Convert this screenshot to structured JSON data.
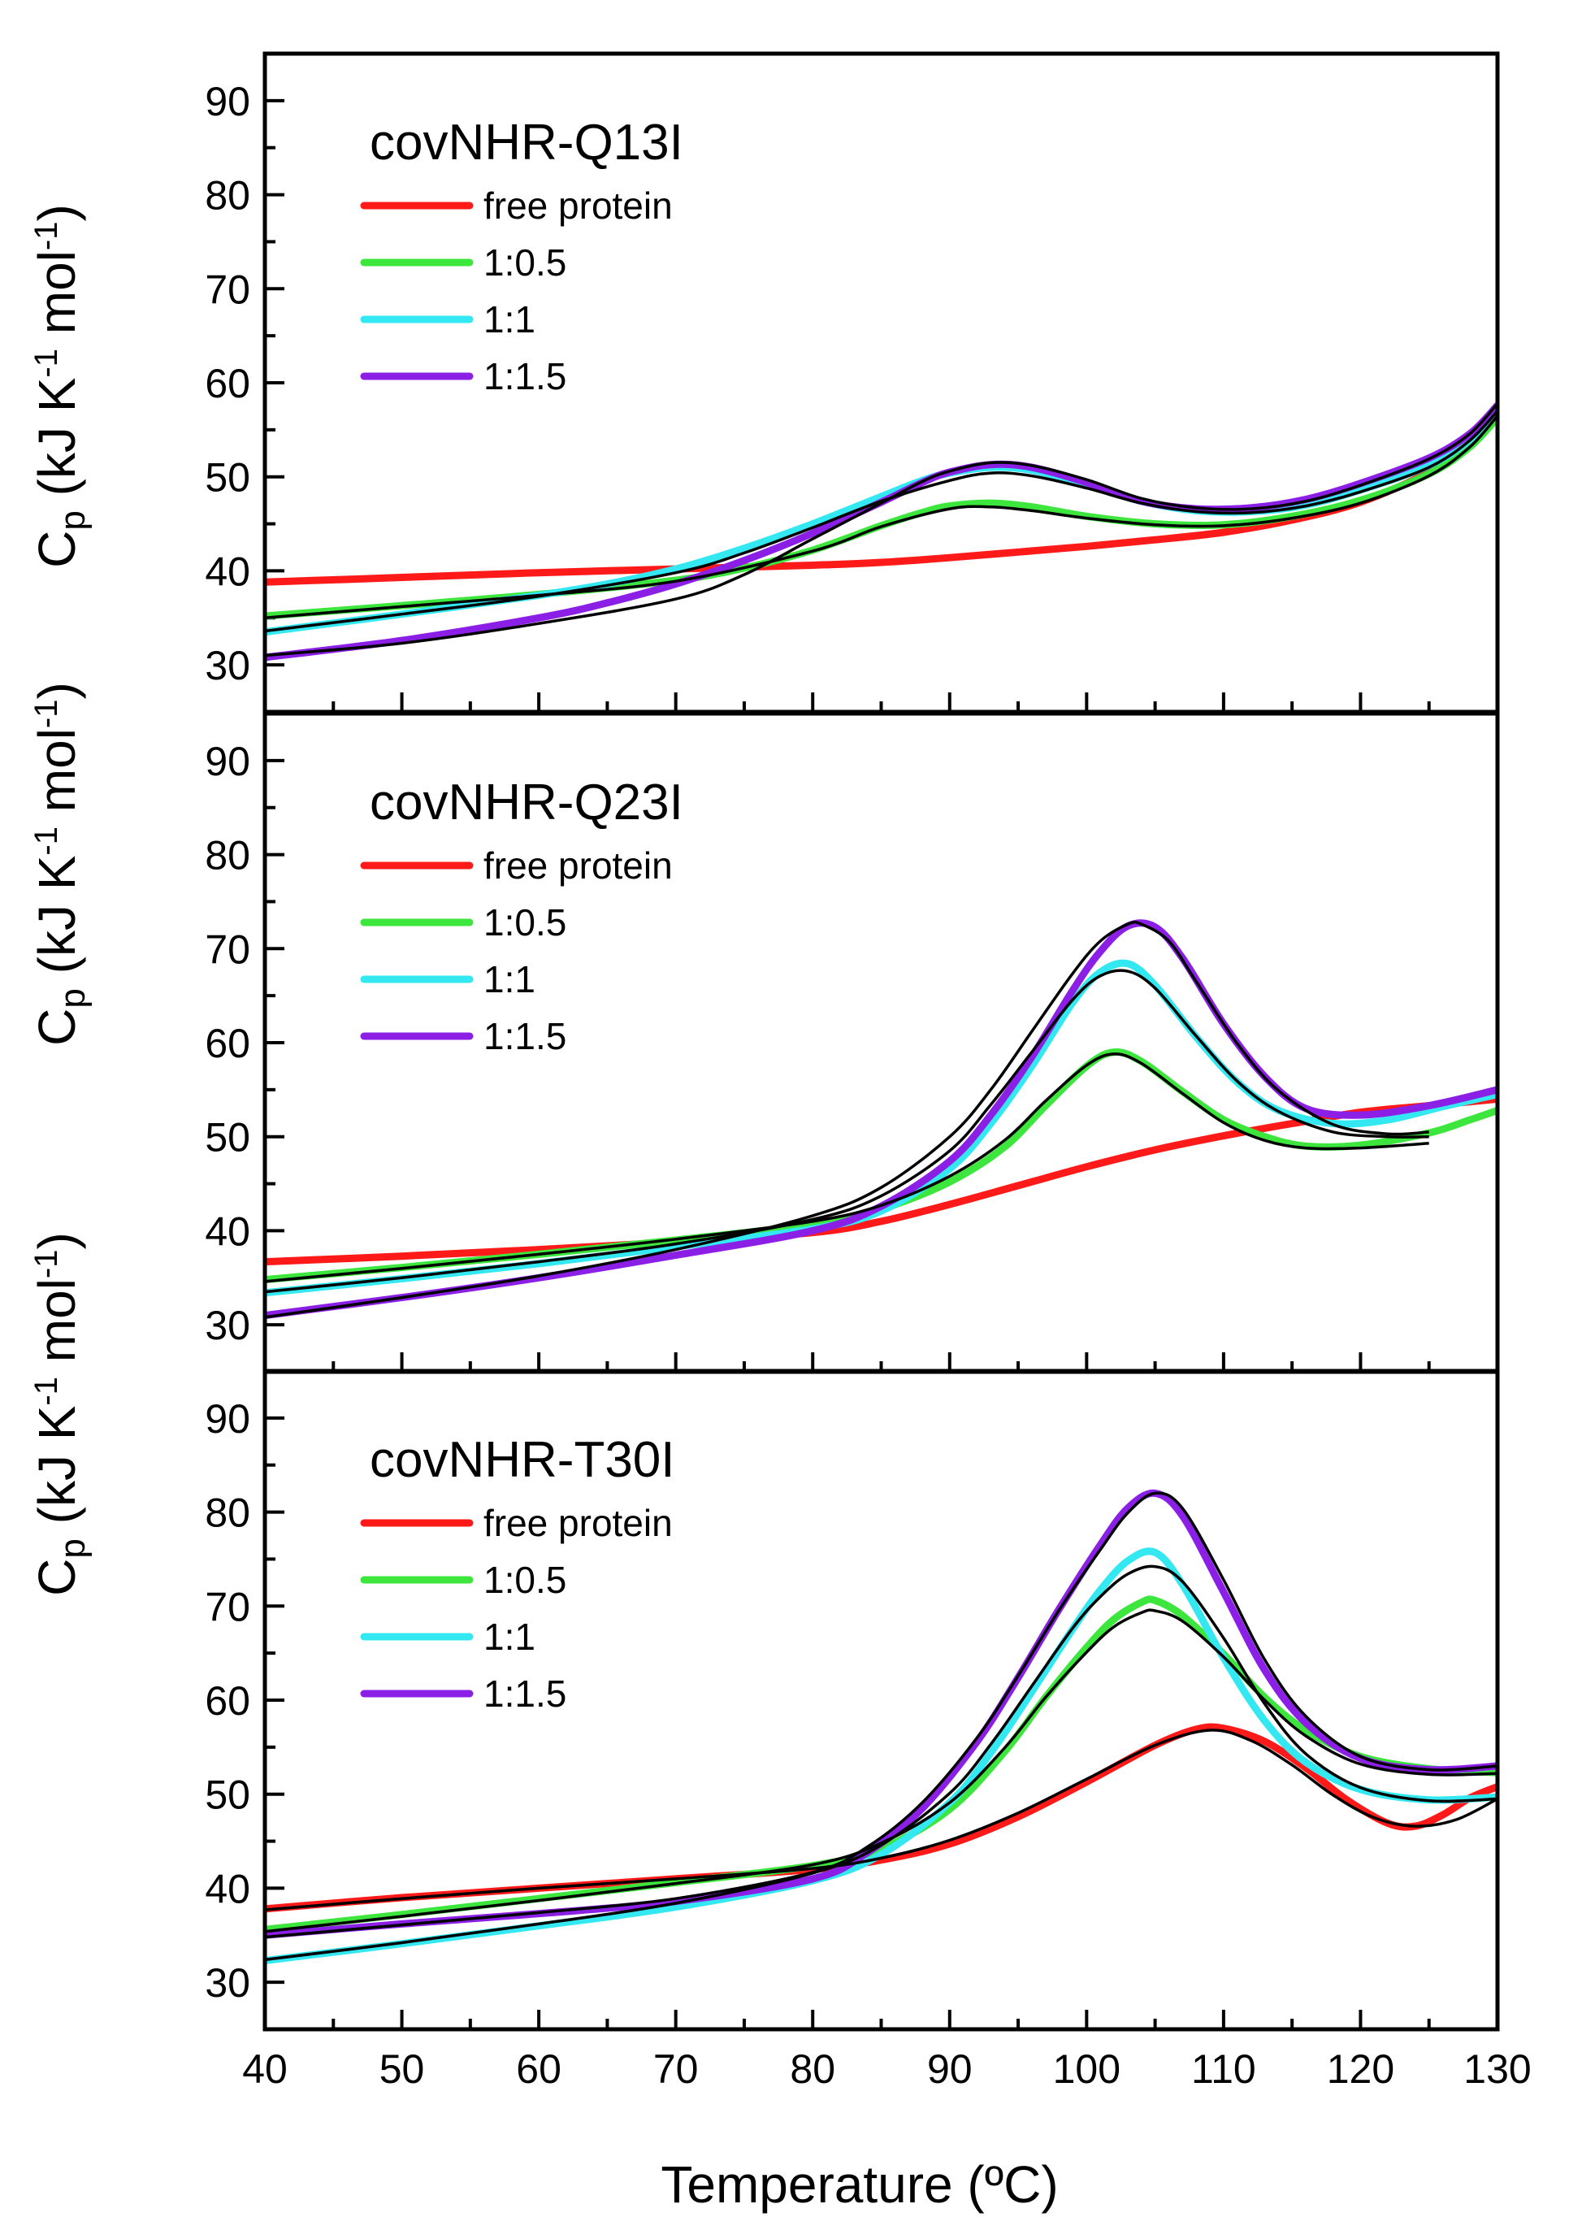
{
  "figure": {
    "x_axis_label": "Temperature (ºC)",
    "y_axis_label_main": "C",
    "y_axis_label_sub": "p",
    "y_axis_label_rest": " (kJ K",
    "y_axis_label_sup1": "-1",
    "y_axis_label_mid": " mol",
    "y_axis_label_sup2": "-1",
    "y_axis_label_end": ")"
  },
  "chart_data": [
    {
      "type": "line",
      "title": "covNHR-Q13I",
      "xlim": [
        40,
        130
      ],
      "ylim": [
        25,
        95
      ],
      "x_ticks": [
        40,
        50,
        60,
        70,
        80,
        90,
        100,
        110,
        120,
        130
      ],
      "y_ticks": [
        30,
        40,
        50,
        60,
        70,
        80,
        90
      ],
      "legend": "top-left",
      "series": [
        {
          "name": "free protein",
          "color": "#ff1a1a",
          "x": [
            40,
            50,
            60,
            70,
            80,
            85,
            90,
            95,
            100,
            105,
            110,
            115,
            120,
            125,
            128,
            130
          ],
          "y": [
            38.8,
            39.3,
            39.8,
            40.2,
            40.6,
            40.9,
            41.4,
            42.0,
            42.6,
            43.3,
            44.1,
            45.4,
            47.3,
            50.5,
            53.6,
            56.5
          ]
        },
        {
          "name": "1:0.5",
          "color": "#3ce63c",
          "x": [
            40,
            50,
            60,
            70,
            75,
            80,
            85,
            88,
            90,
            93,
            96,
            100,
            105,
            110,
            115,
            120,
            125,
            128,
            130
          ],
          "y": [
            35.2,
            36.3,
            37.5,
            39.0,
            40.3,
            42.2,
            44.8,
            46.2,
            46.9,
            47.2,
            46.8,
            45.8,
            45.0,
            44.9,
            45.8,
            47.5,
            50.3,
            53.2,
            56.3
          ]
        },
        {
          "name": "1:1",
          "color": "#33e8f0",
          "x": [
            40,
            50,
            60,
            65,
            70,
            75,
            80,
            85,
            88,
            90,
            93,
            96,
            100,
            104,
            108,
            112,
            116,
            120,
            125,
            128,
            130
          ],
          "y": [
            33.5,
            35.4,
            37.4,
            38.6,
            40.2,
            42.4,
            45.0,
            47.9,
            49.6,
            50.4,
            51.0,
            50.7,
            49.2,
            47.4,
            46.4,
            46.3,
            47.0,
            48.6,
            51.2,
            54.0,
            57.3
          ]
        },
        {
          "name": "1:1.5",
          "color": "#8c1fe6",
          "x": [
            40,
            50,
            60,
            65,
            70,
            75,
            80,
            85,
            88,
            90,
            93,
            96,
            100,
            104,
            108,
            112,
            116,
            120,
            125,
            128,
            130
          ],
          "y": [
            30.8,
            32.6,
            35.0,
            36.6,
            38.6,
            41.1,
            44.0,
            47.3,
            49.4,
            50.5,
            51.3,
            51.0,
            49.4,
            47.4,
            46.6,
            46.7,
            47.6,
            49.3,
            52.0,
            54.6,
            57.6
          ]
        }
      ],
      "fits": [
        {
          "x": [
            40,
            50,
            60,
            70,
            80,
            85,
            90,
            93,
            96,
            100,
            105,
            110,
            115,
            120,
            125,
            128,
            130
          ],
          "y": [
            35.0,
            36.2,
            37.4,
            38.9,
            42.1,
            44.7,
            46.6,
            46.8,
            46.4,
            45.6,
            44.9,
            44.8,
            45.6,
            47.2,
            50.1,
            53.2,
            56.5
          ]
        },
        {
          "x": [
            40,
            50,
            60,
            70,
            75,
            80,
            85,
            90,
            93,
            96,
            100,
            104,
            108,
            112,
            116,
            120,
            125,
            128,
            130
          ],
          "y": [
            33.6,
            35.4,
            37.3,
            39.8,
            41.9,
            44.6,
            47.4,
            49.6,
            50.4,
            50.1,
            48.8,
            47.2,
            46.3,
            46.2,
            46.9,
            48.4,
            51.0,
            53.9,
            57.0
          ]
        },
        {
          "x": [
            40,
            50,
            60,
            70,
            75,
            80,
            85,
            88,
            90,
            93,
            96,
            100,
            104,
            108,
            112,
            116,
            120,
            125,
            128,
            130
          ],
          "y": [
            31.0,
            32.3,
            34.4,
            37.0,
            39.6,
            43.4,
            47.2,
            49.5,
            50.6,
            51.5,
            51.2,
            49.7,
            47.7,
            46.7,
            46.6,
            47.4,
            49.1,
            51.9,
            54.6,
            57.8
          ]
        }
      ]
    },
    {
      "type": "line",
      "title": "covNHR-Q23I",
      "xlim": [
        40,
        130
      ],
      "ylim": [
        25,
        95
      ],
      "x_ticks": [
        40,
        50,
        60,
        70,
        80,
        90,
        100,
        110,
        120,
        130
      ],
      "y_ticks": [
        30,
        40,
        50,
        60,
        70,
        80,
        90
      ],
      "legend": "top-left",
      "series": [
        {
          "name": "free protein",
          "color": "#ff1a1a",
          "x": [
            40,
            50,
            60,
            70,
            80,
            85,
            90,
            95,
            100,
            105,
            110,
            115,
            120,
            125,
            130
          ],
          "y": [
            36.7,
            37.3,
            38.0,
            38.8,
            39.8,
            41.0,
            42.8,
            44.8,
            46.8,
            48.6,
            50.1,
            51.4,
            52.6,
            53.3,
            54.0
          ]
        },
        {
          "name": "1:0.5",
          "color": "#3ce63c",
          "x": [
            40,
            50,
            60,
            70,
            80,
            85,
            90,
            94,
            97,
            100,
            102,
            104,
            107,
            110,
            113,
            116,
            120,
            125,
            128,
            130
          ],
          "y": [
            34.8,
            36.1,
            37.5,
            39.0,
            40.7,
            42.3,
            45.2,
            48.9,
            53.3,
            57.5,
            59.0,
            58.0,
            54.8,
            51.8,
            50.0,
            49.0,
            49.1,
            50.4,
            51.8,
            52.8
          ]
        },
        {
          "name": "1:1",
          "color": "#33e8f0",
          "x": [
            40,
            50,
            60,
            70,
            80,
            85,
            90,
            93,
            96,
            99,
            101,
            103,
            105,
            108,
            111,
            114,
            118,
            122,
            126,
            130
          ],
          "y": [
            33.4,
            34.9,
            36.5,
            38.3,
            40.2,
            42.1,
            46.6,
            51.4,
            57.5,
            64.3,
            67.5,
            68.4,
            66.1,
            60.6,
            55.8,
            52.8,
            51.4,
            51.8,
            53.2,
            54.5
          ]
        },
        {
          "name": "1:1.5",
          "color": "#8c1fe6",
          "x": [
            40,
            50,
            60,
            70,
            80,
            85,
            90,
            93,
            96,
            99,
            101,
            103,
            105,
            107,
            110,
            113,
            116,
            120,
            125,
            130
          ],
          "y": [
            31.0,
            32.9,
            35.0,
            37.4,
            40.0,
            42.6,
            47.4,
            52.3,
            58.5,
            65.6,
            69.7,
            72.4,
            72.3,
            69.0,
            62.0,
            56.4,
            53.0,
            52.3,
            53.3,
            55.0
          ]
        }
      ],
      "fits": [
        {
          "x": [
            40,
            50,
            60,
            70,
            80,
            85,
            90,
            94,
            97,
            100,
            102,
            104,
            107,
            110,
            113,
            116,
            120,
            125
          ],
          "y": [
            34.6,
            36.0,
            37.5,
            39.1,
            41.0,
            42.7,
            45.8,
            49.6,
            53.8,
            57.6,
            58.8,
            57.8,
            54.6,
            51.5,
            49.6,
            48.8,
            48.8,
            49.3
          ]
        },
        {
          "x": [
            40,
            50,
            60,
            70,
            80,
            85,
            90,
            93,
            96,
            99,
            101,
            103,
            105,
            108,
            111,
            114,
            118,
            122,
            125
          ],
          "y": [
            33.5,
            35.0,
            36.7,
            38.6,
            41.2,
            43.7,
            48.5,
            53.4,
            59.0,
            64.6,
            67.1,
            67.6,
            65.8,
            60.7,
            55.9,
            52.7,
            50.5,
            50.0,
            50.0
          ]
        },
        {
          "x": [
            40,
            50,
            60,
            70,
            80,
            85,
            90,
            93,
            96,
            99,
            101,
            103,
            104,
            106,
            108,
            111,
            114,
            118,
            122,
            125
          ],
          "y": [
            30.8,
            32.9,
            35.2,
            38.0,
            41.6,
            44.6,
            50.0,
            55.0,
            61.2,
            67.4,
            70.8,
            72.6,
            72.6,
            70.8,
            66.5,
            59.9,
            54.9,
            51.3,
            50.3,
            50.5
          ]
        }
      ]
    },
    {
      "type": "line",
      "title": "covNHR-T30I",
      "xlim": [
        40,
        130
      ],
      "ylim": [
        25,
        95
      ],
      "x_ticks": [
        40,
        50,
        60,
        70,
        80,
        90,
        100,
        110,
        120,
        130
      ],
      "y_ticks": [
        30,
        40,
        50,
        60,
        70,
        80,
        90
      ],
      "legend": "top-left",
      "series": [
        {
          "name": "free protein",
          "color": "#ff1a1a",
          "x": [
            40,
            50,
            60,
            70,
            80,
            85,
            90,
            95,
            100,
            105,
            108,
            110,
            113,
            116,
            119,
            122,
            124,
            126,
            128,
            130
          ],
          "y": [
            37.8,
            39.0,
            40.0,
            41.0,
            42.0,
            43.0,
            44.7,
            47.6,
            51.3,
            55.2,
            56.9,
            57.0,
            55.6,
            52.8,
            49.4,
            46.9,
            46.6,
            47.8,
            49.6,
            50.8
          ]
        },
        {
          "name": "1:0.5",
          "color": "#3ce63c",
          "x": [
            40,
            50,
            60,
            70,
            80,
            85,
            90,
            94,
            97,
            100,
            102,
            104,
            105,
            107,
            110,
            113,
            116,
            120,
            125,
            130
          ],
          "y": [
            35.6,
            37.2,
            38.9,
            40.6,
            42.4,
            44.2,
            48.4,
            54.5,
            60.3,
            65.6,
            68.6,
            70.4,
            70.6,
            69.0,
            64.9,
            60.3,
            56.8,
            54.0,
            52.7,
            52.3
          ]
        },
        {
          "name": "1:1",
          "color": "#33e8f0",
          "x": [
            40,
            50,
            60,
            70,
            80,
            85,
            90,
            93,
            96,
            99,
            101,
            103,
            105,
            107,
            110,
            113,
            116,
            120,
            125,
            130
          ],
          "y": [
            32.3,
            34.1,
            36.0,
            38.0,
            40.8,
            43.6,
            49.1,
            54.4,
            60.9,
            67.6,
            71.7,
            74.8,
            75.7,
            72.3,
            64.5,
            57.8,
            53.4,
            50.5,
            49.4,
            49.7
          ]
        },
        {
          "name": "1:1.5",
          "color": "#8c1fe6",
          "x": [
            40,
            50,
            60,
            70,
            80,
            84,
            88,
            92,
            95,
            98,
            101,
            103,
            105,
            107,
            110,
            113,
            116,
            120,
            125,
            130
          ],
          "y": [
            35.0,
            36.2,
            37.3,
            38.6,
            41.0,
            43.8,
            48.5,
            55.6,
            62.4,
            69.7,
            76.5,
            80.4,
            82.0,
            79.6,
            71.5,
            63.2,
            57.6,
            53.8,
            52.6,
            53.0
          ]
        }
      ],
      "fits": [
        {
          "x": [
            40,
            50,
            60,
            70,
            80,
            85,
            90,
            95,
            100,
            105,
            109,
            112,
            115,
            118,
            121,
            124,
            127,
            130
          ],
          "y": [
            37.7,
            38.9,
            40.0,
            41.0,
            42.1,
            43.2,
            45.1,
            48.0,
            51.6,
            55.2,
            56.8,
            55.7,
            53.1,
            49.9,
            47.5,
            46.6,
            47.3,
            49.5
          ]
        },
        {
          "x": [
            40,
            50,
            60,
            70,
            80,
            85,
            90,
            94,
            97,
            100,
            102,
            104,
            105,
            107,
            110,
            113,
            116,
            120,
            125,
            130
          ],
          "y": [
            35.4,
            37.0,
            38.7,
            40.5,
            42.5,
            44.8,
            49.1,
            54.9,
            60.3,
            65.1,
            67.8,
            69.3,
            69.5,
            68.4,
            64.6,
            60.0,
            56.2,
            53.2,
            52.1,
            52.2
          ]
        },
        {
          "x": [
            40,
            50,
            60,
            70,
            80,
            85,
            90,
            93,
            96,
            99,
            101,
            103,
            105,
            107,
            110,
            113,
            116,
            120,
            125,
            130
          ],
          "y": [
            32.4,
            34.2,
            36.2,
            38.4,
            41.6,
            44.6,
            50.1,
            55.3,
            61.5,
            67.7,
            71.0,
            73.4,
            74.2,
            72.6,
            66.6,
            59.6,
            54.3,
            50.7,
            49.3,
            49.5
          ]
        },
        {
          "x": [
            40,
            50,
            60,
            70,
            80,
            84,
            88,
            92,
            95,
            98,
            101,
            103,
            105,
            107,
            110,
            113,
            116,
            120,
            125,
            130
          ],
          "y": [
            34.8,
            36.1,
            37.4,
            38.9,
            41.7,
            44.4,
            49.1,
            56.0,
            62.6,
            69.6,
            76.0,
            79.9,
            82.0,
            80.4,
            72.8,
            64.3,
            58.3,
            54.0,
            52.6,
            53.0
          ]
        }
      ]
    }
  ]
}
